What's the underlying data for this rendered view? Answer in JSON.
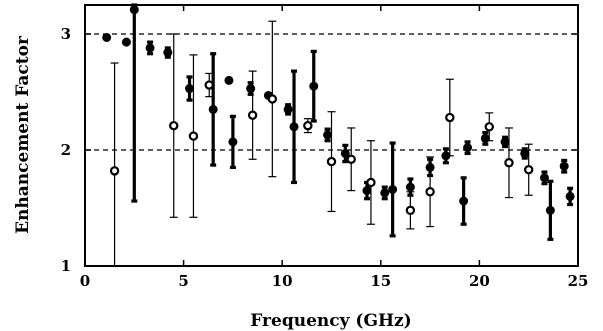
{
  "chart_data": {
    "type": "scatter",
    "title": "",
    "xlabel": "Frequency (GHz)",
    "ylabel": "Enhancement Factor",
    "xlim": [
      0,
      25
    ],
    "ylim": [
      1,
      3.25
    ],
    "xticks": [
      0,
      5,
      10,
      15,
      20,
      25
    ],
    "yticks": [
      1,
      2,
      3
    ],
    "xtick_labels": [
      "0",
      "5",
      "10",
      "15",
      "20",
      "25"
    ],
    "ytick_labels": [
      "1",
      "2",
      "3"
    ],
    "reference_lines_y": [
      2,
      3
    ],
    "grid": false,
    "legend": "none",
    "series": [
      {
        "marker": "filled-circle",
        "errorbar_style": "thick",
        "points": [
          {
            "x": 1.1,
            "y": 2.97,
            "err": 0.02
          },
          {
            "x": 2.1,
            "y": 2.93,
            "err": 0.02
          },
          {
            "x": 2.5,
            "y": 3.21,
            "err": 1.65
          },
          {
            "x": 3.3,
            "y": 2.88,
            "err": 0.05
          },
          {
            "x": 4.2,
            "y": 2.84,
            "err": 0.04
          },
          {
            "x": 5.3,
            "y": 2.53,
            "err": 0.1
          },
          {
            "x": 6.5,
            "y": 2.35,
            "err": 0.48
          },
          {
            "x": 7.3,
            "y": 2.6,
            "err": 0.03
          },
          {
            "x": 7.5,
            "y": 2.07,
            "err": 0.22
          },
          {
            "x": 8.4,
            "y": 2.53,
            "err": 0.05
          },
          {
            "x": 9.3,
            "y": 2.47,
            "err": 0.03
          },
          {
            "x": 10.3,
            "y": 2.35,
            "err": 0.04
          },
          {
            "x": 10.6,
            "y": 2.2,
            "err": 0.48
          },
          {
            "x": 11.6,
            "y": 2.55,
            "err": 0.3
          },
          {
            "x": 12.3,
            "y": 2.13,
            "err": 0.05
          },
          {
            "x": 13.2,
            "y": 1.97,
            "err": 0.07
          },
          {
            "x": 14.3,
            "y": 1.65,
            "err": 0.07
          },
          {
            "x": 15.2,
            "y": 1.63,
            "err": 0.05
          },
          {
            "x": 15.6,
            "y": 1.66,
            "err": 0.4
          },
          {
            "x": 16.5,
            "y": 1.68,
            "err": 0.07
          },
          {
            "x": 17.5,
            "y": 1.85,
            "err": 0.07
          },
          {
            "x": 18.3,
            "y": 1.95,
            "err": 0.06
          },
          {
            "x": 19.2,
            "y": 1.56,
            "err": 0.2
          },
          {
            "x": 19.4,
            "y": 2.02,
            "err": 0.05
          },
          {
            "x": 20.3,
            "y": 2.1,
            "err": 0.05
          },
          {
            "x": 21.3,
            "y": 2.07,
            "err": 0.04
          },
          {
            "x": 22.3,
            "y": 1.97,
            "err": 0.04
          },
          {
            "x": 23.3,
            "y": 1.76,
            "err": 0.05
          },
          {
            "x": 23.6,
            "y": 1.48,
            "err": 0.25
          },
          {
            "x": 24.3,
            "y": 1.86,
            "err": 0.05
          },
          {
            "x": 24.6,
            "y": 1.6,
            "err": 0.07
          }
        ]
      },
      {
        "marker": "open-circle",
        "errorbar_style": "thin",
        "points": [
          {
            "x": 1.5,
            "y": 1.82,
            "err": 0.93
          },
          {
            "x": 4.5,
            "y": 2.21,
            "err": 0.79
          },
          {
            "x": 5.5,
            "y": 2.12,
            "err": 0.7
          },
          {
            "x": 6.3,
            "y": 2.56,
            "err": 0.1
          },
          {
            "x": 8.5,
            "y": 2.3,
            "err": 0.38
          },
          {
            "x": 9.5,
            "y": 2.44,
            "err": 0.67
          },
          {
            "x": 11.3,
            "y": 2.21,
            "err": 0.06
          },
          {
            "x": 12.5,
            "y": 1.9,
            "err": 0.43
          },
          {
            "x": 13.5,
            "y": 1.92,
            "err": 0.27
          },
          {
            "x": 14.5,
            "y": 1.72,
            "err": 0.36
          },
          {
            "x": 16.5,
            "y": 1.48,
            "err": 0.16
          },
          {
            "x": 17.5,
            "y": 1.64,
            "err": 0.3
          },
          {
            "x": 18.5,
            "y": 2.28,
            "err": 0.33
          },
          {
            "x": 20.5,
            "y": 2.2,
            "err": 0.12
          },
          {
            "x": 21.5,
            "y": 1.89,
            "err": 0.3
          },
          {
            "x": 22.5,
            "y": 1.83,
            "err": 0.22
          }
        ]
      }
    ]
  }
}
